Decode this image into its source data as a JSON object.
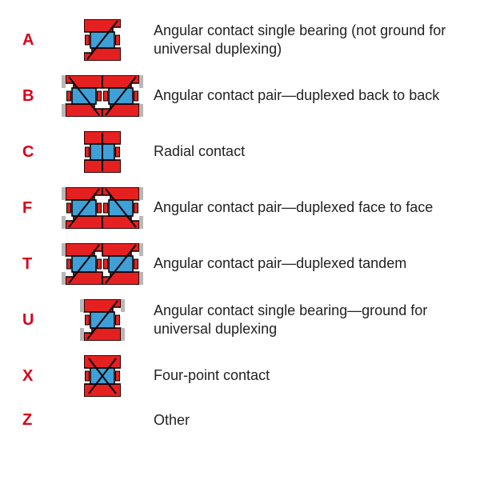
{
  "colors": {
    "code": "#d9001b",
    "desc": "#222222",
    "bearing_fill": "#e52020",
    "bearing_stroke": "#000000",
    "inner_blue": "#3fa0d8",
    "ground_gray": "#b8b8b8",
    "bg": "#ffffff"
  },
  "font": {
    "code_size": 20,
    "desc_size": 18,
    "family": "Segoe UI, Arial, sans-serif"
  },
  "rows": [
    {
      "code": "A",
      "type": "single_angular",
      "desc": "Angular contact single bearing (not ground for universal duplexing)"
    },
    {
      "code": "B",
      "type": "pair_back_to_back",
      "desc": "Angular contact pair—duplexed back to back"
    },
    {
      "code": "C",
      "type": "radial",
      "desc": "Radial contact"
    },
    {
      "code": "F",
      "type": "pair_face_to_face",
      "desc": "Angular contact pair—duplexed face to face"
    },
    {
      "code": "T",
      "type": "pair_tandem",
      "desc": "Angular contact pair—duplexed tandem"
    },
    {
      "code": "U",
      "type": "single_universal",
      "desc": "Angular contact single bearing—ground for universal duplexing"
    },
    {
      "code": "X",
      "type": "four_point",
      "desc": "Four-point contact"
    },
    {
      "code": "Z",
      "type": "none",
      "desc": "Other"
    }
  ],
  "icon": {
    "single_w": 46,
    "single_h": 52,
    "pair_w": 92,
    "pair_h": 52,
    "stroke_w": 1.6,
    "contact_line_w": 2.0
  }
}
